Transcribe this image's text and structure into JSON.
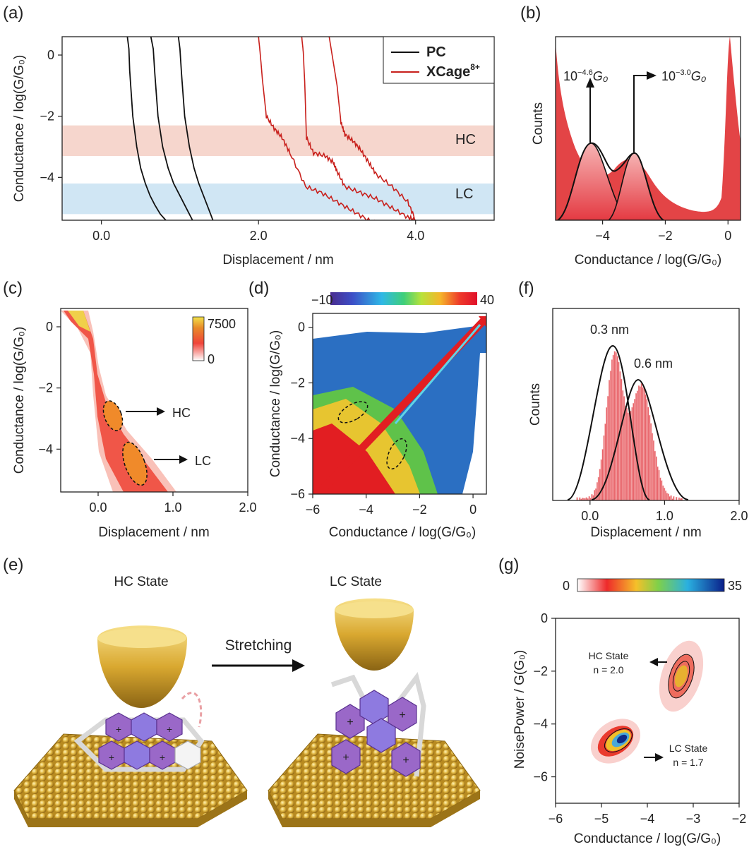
{
  "panel_labels": {
    "a": "(a)",
    "b": "(b)",
    "c": "(c)",
    "d": "(d)",
    "e": "(e)",
    "f": "(f)",
    "g": "(g)"
  },
  "colors": {
    "pc": "#111111",
    "xcage": "#c8201c",
    "hc_band": "#f4cfc4",
    "lc_band": "#c8e2f2",
    "hist_fill": "#e8646a"
  },
  "chart_data": [
    {
      "id": "a",
      "type": "line",
      "xlabel": "Displacement / nm",
      "ylabel": "Conductance / log(G/G₀)",
      "xticks": [
        "0.0",
        "2.0",
        "4.0"
      ],
      "xtick_values": [
        0,
        2,
        4
      ],
      "yticks": [
        "0",
        "−2",
        "−4"
      ],
      "ytick_values": [
        0,
        -2,
        -4
      ],
      "xlim": [
        -0.5,
        5.0
      ],
      "ylim": [
        -5.4,
        0.6
      ],
      "legend": [
        {
          "label": "PC",
          "color": "#111111"
        },
        {
          "label": "XCage",
          "sup": "8+",
          "color": "#c8201c"
        }
      ],
      "bands": [
        {
          "label": "HC",
          "from": -3.3,
          "to": -2.3,
          "color": "#f4cfc4"
        },
        {
          "label": "LC",
          "from": -5.2,
          "to": -4.2,
          "color": "#c8e2f2"
        }
      ],
      "series": [
        {
          "group": "PC",
          "x": [
            0.33,
            0.35,
            0.36,
            0.4,
            0.45,
            0.5,
            0.56,
            0.62,
            0.68,
            0.75,
            0.82
          ],
          "y": [
            0.6,
            0.2,
            -0.5,
            -2.0,
            -3.0,
            -3.7,
            -4.2,
            -4.6,
            -4.9,
            -5.2,
            -5.4
          ]
        },
        {
          "group": "PC",
          "x": [
            0.63,
            0.66,
            0.68,
            0.72,
            0.78,
            0.85,
            0.92,
            1.0,
            1.08,
            1.16
          ],
          "y": [
            0.6,
            0.2,
            -0.6,
            -2.0,
            -3.0,
            -3.7,
            -4.2,
            -4.6,
            -5.0,
            -5.4
          ]
        },
        {
          "group": "PC",
          "x": [
            0.98,
            1.0,
            1.02,
            1.06,
            1.12,
            1.18,
            1.24,
            1.3,
            1.36,
            1.42
          ],
          "y": [
            0.6,
            0.2,
            -0.6,
            -2.0,
            -3.0,
            -3.7,
            -4.2,
            -4.6,
            -5.0,
            -5.4
          ]
        },
        {
          "group": "XCage",
          "x": [
            2.0,
            2.02,
            2.05,
            2.1,
            2.2,
            2.3,
            2.4,
            2.6,
            2.8,
            3.0,
            3.2,
            3.4,
            3.6,
            3.8,
            4.0
          ],
          "y": [
            0.6,
            0.1,
            -0.8,
            -2.0,
            -2.4,
            -2.7,
            -3.2,
            -4.3,
            -4.5,
            -4.8,
            -5.1,
            -5.4,
            -5.6,
            -5.8,
            -6.0
          ]
        },
        {
          "group": "XCage",
          "x": [
            2.55,
            2.57,
            2.59,
            2.61,
            2.7,
            2.85,
            2.95,
            3.0,
            3.1,
            3.3,
            3.5,
            3.7,
            3.9,
            4.0
          ],
          "y": [
            0.6,
            0.1,
            -1.0,
            -2.7,
            -3.2,
            -3.3,
            -3.5,
            -3.8,
            -4.3,
            -4.5,
            -4.7,
            -5.0,
            -5.3,
            -5.4
          ]
        },
        {
          "group": "XCage",
          "x": [
            2.9,
            2.95,
            3.0,
            3.05,
            3.1,
            3.2,
            3.3,
            3.4,
            3.5,
            3.7,
            3.9,
            4.0
          ],
          "y": [
            0.6,
            -0.2,
            -1.0,
            -2.2,
            -2.6,
            -2.8,
            -3.1,
            -3.5,
            -3.9,
            -4.3,
            -4.8,
            -5.4
          ]
        }
      ]
    },
    {
      "id": "b",
      "type": "area",
      "xlabel": "Conductance / log(G/G₀)",
      "ylabel": "Counts",
      "xticks": [
        "−4",
        "−2",
        "0"
      ],
      "xtick_values": [
        -4,
        -2,
        0
      ],
      "xlim": [
        -5.5,
        0.4
      ],
      "peaks": [
        {
          "center": -4.6,
          "label": "10",
          "sup": "−4.6",
          "unit": "G₀"
        },
        {
          "center": -3.0,
          "label": "10",
          "sup": "−3.0",
          "unit": "G₀"
        }
      ]
    },
    {
      "id": "c",
      "type": "heatmap",
      "xlabel": "Displacement / nm",
      "ylabel": "Conductance / log(G/G₀)",
      "xticks": [
        "0.0",
        "1.0",
        "2.0"
      ],
      "xtick_values": [
        0,
        1,
        2
      ],
      "yticks": [
        "0",
        "−2",
        "−4"
      ],
      "ytick_values": [
        0,
        -2,
        -4
      ],
      "xlim": [
        -0.5,
        2.0
      ],
      "ylim": [
        -5.4,
        0.6
      ],
      "colorbar": {
        "min": "0",
        "max": "7500"
      },
      "annotations": [
        {
          "label": "HC"
        },
        {
          "label": "LC"
        }
      ]
    },
    {
      "id": "d",
      "type": "heatmap",
      "xlabel": "Conductance / log(G/G₀)",
      "ylabel": "Conductance / log(G/G₀)",
      "xticks": [
        "−6",
        "−4",
        "−2",
        "0"
      ],
      "xtick_values": [
        -6,
        -4,
        -2,
        0
      ],
      "yticks": [
        "0",
        "−2",
        "−4",
        "−6"
      ],
      "ytick_values": [
        0,
        -2,
        -4,
        -6
      ],
      "xlim": [
        -6,
        0.5
      ],
      "ylim": [
        -6,
        0.5
      ],
      "colorbar": {
        "min": "−10",
        "max": "40"
      }
    },
    {
      "id": "f",
      "type": "bar",
      "xlabel": "Displacement / nm",
      "ylabel": "Counts",
      "xticks": [
        "0.0",
        "1.0",
        "2.0"
      ],
      "xtick_values": [
        0,
        1,
        2
      ],
      "xlim": [
        -0.5,
        2.0
      ],
      "peaks": [
        {
          "center": 0.3,
          "label": "0.3 nm"
        },
        {
          "center": 0.6,
          "label": "0.6 nm"
        }
      ]
    },
    {
      "id": "g",
      "type": "heatmap",
      "xlabel": "Conductance / log(G/G₀)",
      "ylabel": "NoisePower / G(G₀)",
      "xticks": [
        "−6",
        "−5",
        "−4",
        "−3",
        "−2"
      ],
      "xtick_values": [
        -6,
        -5,
        -4,
        -3,
        -2
      ],
      "yticks": [
        "0",
        "−2",
        "−4",
        "−6"
      ],
      "ytick_values": [
        0,
        -2,
        -4,
        -6
      ],
      "xlim": [
        -6,
        -2
      ],
      "ylim": [
        -7,
        0
      ],
      "colorbar": {
        "min": "0",
        "max": "35"
      },
      "clusters": [
        {
          "name": "HC State",
          "n_label": "n = 2.0",
          "center_x": -3.3,
          "center_y": -2.8
        },
        {
          "name": "LC State",
          "n_label": "n = 1.7",
          "center_x": -4.5,
          "center_y": -5.5
        }
      ]
    }
  ],
  "schematic": {
    "hc_title": "HC State",
    "lc_title": "LC State",
    "arrow_label": "Stretching"
  }
}
